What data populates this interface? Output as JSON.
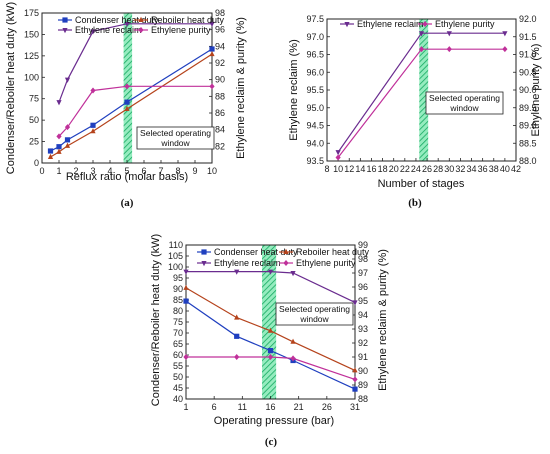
{
  "colors": {
    "condenser": "#1f3fbf",
    "reboiler": "#b5431c",
    "reclaim": "#6a2c8f",
    "purity": "#c0309a",
    "band": "#3ddc8a"
  },
  "chart_data": [
    {
      "panel": "(a)",
      "type": "line",
      "xlabel": "Reflux ratio (molar basis)",
      "ylabel_left": "Condenser/Reboiler heat duty (kW)",
      "ylabel_right": "Ethylene reclaim & purity (%)",
      "xlim": [
        0,
        10
      ],
      "xticks": [
        0,
        1,
        2,
        3,
        4,
        5,
        6,
        7,
        8,
        9,
        10
      ],
      "ylim_left": [
        0,
        175
      ],
      "yticks_left": [
        0,
        25,
        50,
        75,
        100,
        125,
        150,
        175
      ],
      "ylim_right": [
        80,
        98
      ],
      "yticks_right": [
        82,
        84,
        86,
        88,
        90,
        92,
        94,
        96,
        98
      ],
      "band": [
        4.8,
        5.3
      ],
      "annotation": [
        "Selected operating",
        "window"
      ],
      "series": [
        {
          "name": "Condenser heat duty",
          "axis": "left",
          "color_key": "condenser",
          "marker": "square",
          "x": [
            0.5,
            1,
            1.5,
            3,
            5,
            10
          ],
          "y": [
            14,
            19,
            27,
            44,
            71,
            133
          ]
        },
        {
          "name": "Reboiler heat duty",
          "axis": "left",
          "color_key": "reboiler",
          "marker": "triangle",
          "x": [
            0.5,
            1,
            1.5,
            3,
            5,
            10
          ],
          "y": [
            7,
            13,
            20,
            37,
            63,
            127
          ]
        },
        {
          "name": "Ethylene reclaim",
          "axis": "right",
          "color_key": "reclaim",
          "marker": "triangle-down",
          "x": [
            1,
            1.5,
            3,
            5,
            10
          ],
          "y": [
            87.3,
            90,
            95.8,
            96.7,
            96.7
          ]
        },
        {
          "name": "Ethylene purity",
          "axis": "right",
          "color_key": "purity",
          "marker": "diamond",
          "x": [
            1,
            1.5,
            3,
            5,
            10
          ],
          "y": [
            83.2,
            84.3,
            88.7,
            89.2,
            89.2
          ]
        }
      ]
    },
    {
      "panel": "(b)",
      "type": "line",
      "xlabel": "Number of stages",
      "ylabel_left": "Ethylene reclaim (%)",
      "ylabel_right": "Ethylene purity (%)",
      "xlim": [
        8,
        42
      ],
      "xticks": [
        8,
        10,
        12,
        14,
        16,
        18,
        20,
        22,
        24,
        26,
        28,
        30,
        32,
        34,
        36,
        38,
        40,
        42
      ],
      "ylim_left": [
        93.5,
        97.5
      ],
      "yticks_left": [
        93.5,
        94.0,
        94.5,
        95.0,
        95.5,
        96.0,
        96.5,
        97.0,
        97.5
      ],
      "ylim_right": [
        88.0,
        92.0
      ],
      "yticks_right": [
        88.0,
        88.5,
        89.0,
        89.5,
        90.0,
        90.5,
        91.0,
        91.5,
        92.0
      ],
      "band": [
        24.6,
        26.2
      ],
      "annotation": [
        "Selected operating",
        "window"
      ],
      "series": [
        {
          "name": "Ethylene reclaim",
          "axis": "left",
          "color_key": "reclaim",
          "marker": "triangle-down",
          "x": [
            10,
            25,
            30,
            40
          ],
          "y": [
            93.75,
            97.1,
            97.1,
            97.1
          ]
        },
        {
          "name": "Ethylene purity",
          "axis": "right",
          "color_key": "purity",
          "marker": "diamond",
          "x": [
            10,
            25,
            30,
            40
          ],
          "y": [
            88.1,
            91.15,
            91.15,
            91.15
          ]
        }
      ]
    },
    {
      "panel": "(c)",
      "type": "line",
      "xlabel": "Operating pressure (bar)",
      "ylabel_left": "Condenser/Reboiler heat duty (kW)",
      "ylabel_right": "Ethylene reclaim & purity (%)",
      "xlim": [
        1,
        31
      ],
      "xticks": [
        1,
        6,
        11,
        16,
        21,
        26,
        31
      ],
      "ylim_left": [
        40,
        110
      ],
      "yticks_left": [
        40,
        45,
        50,
        55,
        60,
        65,
        70,
        75,
        80,
        85,
        90,
        95,
        100,
        105,
        110
      ],
      "ylim_right": [
        88,
        99
      ],
      "yticks_right": [
        88,
        89,
        90,
        91,
        92,
        93,
        94,
        95,
        96,
        97,
        98,
        99
      ],
      "band": [
        14.5,
        17
      ],
      "annotation": [
        "Selected operating",
        "window"
      ],
      "series": [
        {
          "name": "Condenser heat duty",
          "axis": "left",
          "color_key": "condenser",
          "marker": "square",
          "x": [
            1,
            10,
            16,
            20,
            31
          ],
          "y": [
            84.5,
            68.5,
            62,
            57.5,
            44.5
          ]
        },
        {
          "name": "Reboiler heat duty",
          "axis": "left",
          "color_key": "reboiler",
          "marker": "triangle",
          "x": [
            1,
            10,
            16,
            20,
            31
          ],
          "y": [
            90.5,
            77,
            71,
            66,
            53
          ]
        },
        {
          "name": "Ethylene reclaim",
          "axis": "right",
          "color_key": "reclaim",
          "marker": "triangle-down",
          "x": [
            1,
            10,
            16,
            20,
            31
          ],
          "y": [
            97.1,
            97.1,
            97.1,
            97.0,
            94.9
          ]
        },
        {
          "name": "Ethylene purity",
          "axis": "right",
          "color_key": "purity",
          "marker": "diamond",
          "x": [
            1,
            10,
            16,
            20,
            31
          ],
          "y": [
            91,
            91,
            91,
            90.9,
            89.4
          ]
        }
      ]
    }
  ]
}
